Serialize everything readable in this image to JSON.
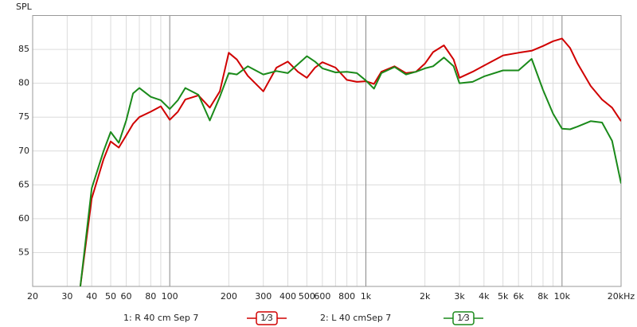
{
  "chart_data": {
    "type": "line",
    "y_label": "SPL",
    "xscale": "log",
    "grid": true,
    "xlim": [
      20,
      20000
    ],
    "ylim": [
      50,
      90
    ],
    "yticks": [
      55,
      60,
      65,
      70,
      75,
      80,
      85
    ],
    "xticks": [
      20,
      30,
      40,
      50,
      60,
      80,
      100,
      200,
      300,
      400,
      500,
      600,
      800,
      {
        "value": 1000,
        "label": "1k"
      },
      {
        "value": 2000,
        "label": "2k"
      },
      {
        "value": 3000,
        "label": "3k"
      },
      {
        "value": 4000,
        "label": "4k"
      },
      {
        "value": 5000,
        "label": "5k"
      },
      {
        "value": 6000,
        "label": "6k"
      },
      {
        "value": 8000,
        "label": "8k"
      },
      {
        "value": 10000,
        "label": "10k"
      },
      {
        "value": 20000,
        "label": "20kHz"
      }
    ],
    "xminor": [
      70,
      90,
      700,
      900,
      7000,
      9000
    ],
    "x": [
      35,
      40,
      46,
      50,
      55,
      60,
      65,
      70,
      80,
      90,
      100,
      110,
      120,
      140,
      160,
      180,
      200,
      220,
      250,
      300,
      350,
      400,
      450,
      500,
      550,
      600,
      700,
      800,
      900,
      1000,
      1100,
      1200,
      1400,
      1600,
      1800,
      2000,
      2200,
      2500,
      2800,
      3000,
      3500,
      4000,
      5000,
      6000,
      7000,
      8000,
      9000,
      10000,
      11000,
      12000,
      14000,
      16000,
      18000,
      20000
    ],
    "series": [
      {
        "name": "1: R 40 cm Sep 7",
        "smoothing": "1⁄3",
        "color": "#d00000",
        "values": [
          50,
          63,
          68.8,
          71.4,
          70.5,
          72.3,
          74,
          75,
          75.8,
          76.6,
          74.6,
          75.8,
          77.6,
          78.2,
          76.4,
          78.8,
          84.5,
          83.5,
          81.1,
          78.8,
          82.3,
          83.2,
          81.7,
          80.8,
          82.3,
          83.1,
          82.3,
          80.5,
          80.2,
          80.3,
          79.9,
          81.7,
          82.5,
          81.5,
          81.7,
          82.9,
          84.6,
          85.6,
          83.5,
          80.8,
          81.7,
          82.6,
          84.1,
          84.5,
          84.8,
          85.5,
          86.2,
          86.6,
          85.2,
          82.9,
          79.6,
          77.6,
          76.4,
          74.4
        ]
      },
      {
        "name": "2: L 40 cmSep 7",
        "smoothing": "1⁄3",
        "color": "#1a8a1a",
        "values": [
          50,
          64.5,
          70,
          72.8,
          71.2,
          74.5,
          78.5,
          79.3,
          78,
          77.5,
          76.2,
          77.5,
          79.3,
          78.3,
          74.5,
          78,
          81.5,
          81.3,
          82.5,
          81.3,
          81.8,
          81.5,
          82.8,
          84,
          83.2,
          82.2,
          81.6,
          81.7,
          81.5,
          80.4,
          79.2,
          81.5,
          82.4,
          81.3,
          81.7,
          82.2,
          82.5,
          83.8,
          82.5,
          80,
          80.2,
          81,
          81.9,
          81.9,
          83.6,
          79,
          75.5,
          73.3,
          73.2,
          73.6,
          74.4,
          74.2,
          71.5,
          65.2
        ]
      }
    ]
  }
}
